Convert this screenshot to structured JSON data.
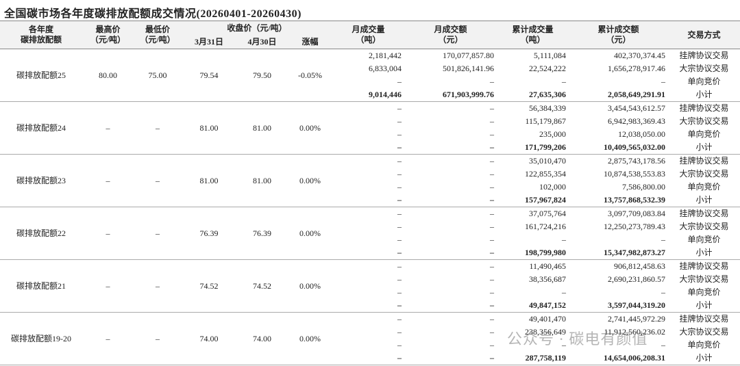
{
  "title": "全国碳市场各年度碳排放配额成交情况(20260401-20260430)",
  "header": {
    "row1": [
      [
        "各年度",
        "碳排放配额"
      ],
      [
        "最高价",
        "（元/吨）"
      ],
      [
        "最低价",
        "（元/吨）"
      ],
      [
        "收盘价（元/吨）"
      ],
      [
        "月成交量",
        "（吨）"
      ],
      [
        "月成交额",
        "（元）"
      ],
      [
        "累计成交量",
        "（吨）"
      ],
      [
        "累计成交额",
        "（元）"
      ],
      [
        "交易方式"
      ]
    ],
    "row2": [
      "3月31日",
      "4月30日",
      "涨幅"
    ]
  },
  "groups": [
    {
      "name": "碳排放配额25",
      "high": "80.00",
      "low": "75.00",
      "close_start": "79.54",
      "close_end": "79.50",
      "change": "-0.05%",
      "rows": [
        [
          "2,181,442",
          "170,077,857.80",
          "5,111,084",
          "402,370,374.45",
          "挂牌协议交易"
        ],
        [
          "6,833,004",
          "501,826,141.96",
          "22,524,222",
          "1,656,278,917.46",
          "大宗协议交易"
        ],
        [
          "–",
          "–",
          "–",
          "–",
          "单向竞价"
        ],
        [
          "9,014,446",
          "671,903,999.76",
          "27,635,306",
          "2,058,649,291.91",
          "小计"
        ]
      ]
    },
    {
      "name": "碳排放配额24",
      "high": "–",
      "low": "–",
      "close_start": "81.00",
      "close_end": "81.00",
      "change": "0.00%",
      "rows": [
        [
          "–",
          "–",
          "56,384,339",
          "3,454,543,612.57",
          "挂牌协议交易"
        ],
        [
          "–",
          "–",
          "115,179,867",
          "6,942,983,369.43",
          "大宗协议交易"
        ],
        [
          "–",
          "–",
          "235,000",
          "12,038,050.00",
          "单向竞价"
        ],
        [
          "–",
          "–",
          "171,799,206",
          "10,409,565,032.00",
          "小计"
        ]
      ]
    },
    {
      "name": "碳排放配额23",
      "high": "–",
      "low": "–",
      "close_start": "81.00",
      "close_end": "81.00",
      "change": "0.00%",
      "rows": [
        [
          "–",
          "–",
          "35,010,470",
          "2,875,743,178.56",
          "挂牌协议交易"
        ],
        [
          "–",
          "–",
          "122,855,354",
          "10,874,538,553.83",
          "大宗协议交易"
        ],
        [
          "–",
          "–",
          "102,000",
          "7,586,800.00",
          "单向竞价"
        ],
        [
          "–",
          "–",
          "157,967,824",
          "13,757,868,532.39",
          "小计"
        ]
      ]
    },
    {
      "name": "碳排放配额22",
      "high": "–",
      "low": "–",
      "close_start": "76.39",
      "close_end": "76.39",
      "change": "0.00%",
      "rows": [
        [
          "–",
          "–",
          "37,075,764",
          "3,097,709,083.84",
          "挂牌协议交易"
        ],
        [
          "–",
          "–",
          "161,724,216",
          "12,250,273,789.43",
          "大宗协议交易"
        ],
        [
          "–",
          "–",
          "–",
          "–",
          "单向竞价"
        ],
        [
          "–",
          "–",
          "198,799,980",
          "15,347,982,873.27",
          "小计"
        ]
      ]
    },
    {
      "name": "碳排放配额21",
      "high": "–",
      "low": "–",
      "close_start": "74.52",
      "close_end": "74.52",
      "change": "0.00%",
      "rows": [
        [
          "–",
          "–",
          "11,490,465",
          "906,812,458.63",
          "挂牌协议交易"
        ],
        [
          "–",
          "–",
          "38,356,687",
          "2,690,231,860.57",
          "大宗协议交易"
        ],
        [
          "–",
          "–",
          "–",
          "–",
          "单向竞价"
        ],
        [
          "–",
          "–",
          "49,847,152",
          "3,597,044,319.20",
          "小计"
        ]
      ]
    },
    {
      "name": "碳排放配额19-20",
      "high": "–",
      "low": "–",
      "close_start": "74.00",
      "close_end": "74.00",
      "change": "0.00%",
      "rows": [
        [
          "–",
          "–",
          "49,401,470",
          "2,741,445,972.29",
          "挂牌协议交易"
        ],
        [
          "–",
          "–",
          "238,356,649",
          "11,912,560,236.02",
          "大宗协议交易"
        ],
        [
          "–",
          "–",
          "–",
          "–",
          "单向竞价"
        ],
        [
          "–",
          "–",
          "287,758,119",
          "14,654,006,208.31",
          "小计"
        ]
      ]
    }
  ],
  "watermark": "公众号 · 碳电有颜值"
}
